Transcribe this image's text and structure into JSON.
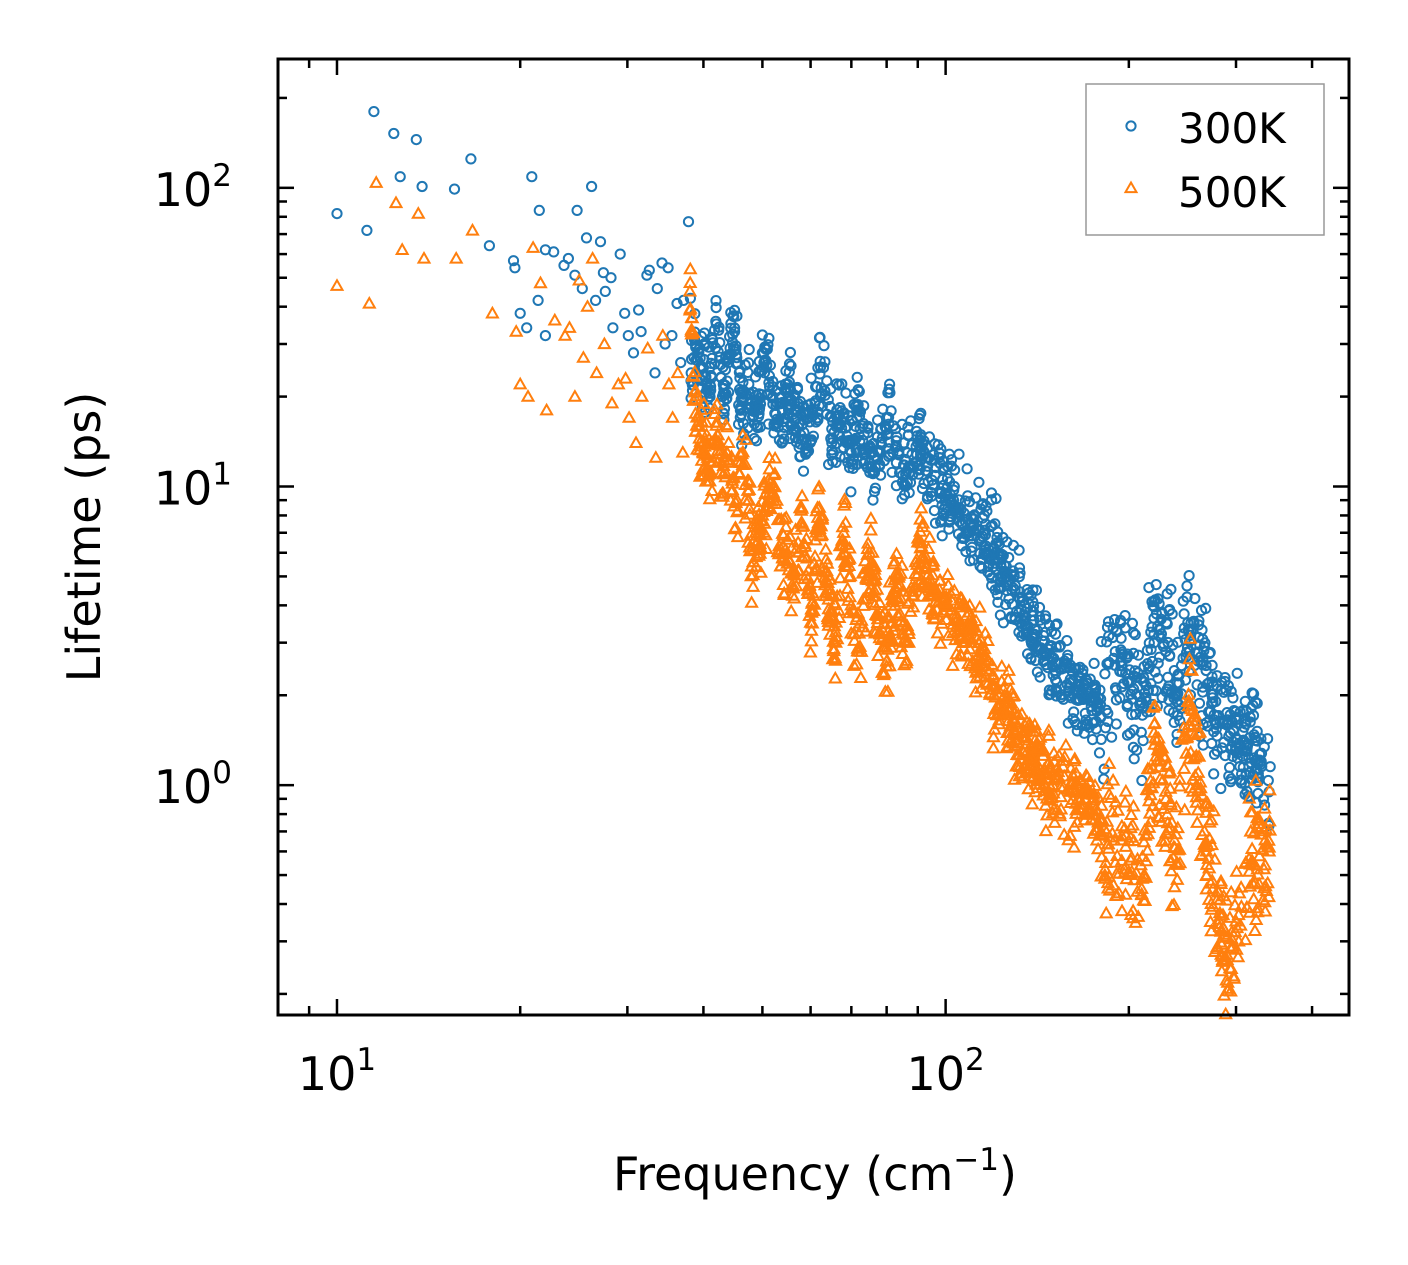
{
  "chart_data": {
    "type": "scatter",
    "title": "",
    "xlabel": "Frequency (cm",
    "xlabel_sup": "−1",
    "xlabel_tail": ")",
    "ylabel": "Lifetime (ps)",
    "xscale": "log",
    "yscale": "log",
    "xlim": [
      8.0,
      460
    ],
    "ylim": [
      0.17,
      270
    ],
    "legend_position": "top-right",
    "x_ticks": [
      {
        "value": 10,
        "base": "10",
        "exp": "1"
      },
      {
        "value": 100,
        "base": "10",
        "exp": "2"
      }
    ],
    "y_ticks": [
      {
        "value": 1,
        "base": "10",
        "exp": "0"
      },
      {
        "value": 10,
        "base": "10",
        "exp": "1"
      },
      {
        "value": 100,
        "base": "10",
        "exp": "2"
      }
    ],
    "series": [
      {
        "name": "300K",
        "marker": "circle",
        "color": "#1f77b4",
        "points": [
          [
            10.0,
            82
          ],
          [
            11.2,
            72
          ],
          [
            11.5,
            180
          ],
          [
            12.4,
            152
          ],
          [
            12.7,
            109
          ],
          [
            13.5,
            145
          ],
          [
            13.8,
            101
          ],
          [
            15.6,
            99
          ],
          [
            16.6,
            125
          ],
          [
            17.8,
            64
          ],
          [
            19.5,
            57
          ],
          [
            19.6,
            54
          ],
          [
            20.0,
            38
          ],
          [
            20.5,
            34
          ],
          [
            20.9,
            109
          ],
          [
            21.5,
            84
          ],
          [
            21.4,
            42
          ],
          [
            22.0,
            32
          ],
          [
            22.0,
            62
          ],
          [
            22.7,
            61
          ],
          [
            23.6,
            55
          ],
          [
            24.0,
            58
          ],
          [
            24.6,
            51
          ],
          [
            24.8,
            84
          ],
          [
            25.3,
            46
          ],
          [
            25.7,
            68
          ],
          [
            26.2,
            101
          ],
          [
            26.6,
            42
          ],
          [
            27.1,
            66
          ],
          [
            27.4,
            52
          ],
          [
            27.6,
            45
          ],
          [
            28.2,
            50
          ],
          [
            28.4,
            34
          ],
          [
            29.2,
            60
          ],
          [
            29.7,
            38
          ],
          [
            30.1,
            32
          ],
          [
            30.7,
            28
          ],
          [
            31.3,
            39
          ],
          [
            31.6,
            33
          ],
          [
            32.3,
            51
          ],
          [
            32.6,
            53
          ],
          [
            33.3,
            24
          ],
          [
            33.6,
            46
          ],
          [
            34.2,
            56
          ],
          [
            34.6,
            30
          ],
          [
            35.0,
            54
          ],
          [
            35.5,
            32
          ],
          [
            36.2,
            41
          ],
          [
            36.7,
            26
          ],
          [
            37.1,
            42
          ],
          [
            37.8,
            77
          ],
          [
            38.2,
            24
          ],
          [
            38.8,
            30
          ],
          [
            39.3,
            28
          ],
          [
            40.0,
            25
          ],
          [
            41.0,
            22
          ],
          [
            42.0,
            35
          ],
          [
            43.0,
            20
          ],
          [
            44.0,
            26
          ],
          [
            45.0,
            33
          ],
          [
            46.0,
            18
          ],
          [
            47.5,
            22
          ],
          [
            49.0,
            16
          ],
          [
            50.0,
            28
          ],
          [
            52.0,
            20
          ],
          [
            54.0,
            15
          ],
          [
            55.0,
            22
          ],
          [
            57.0,
            17
          ],
          [
            59.0,
            14
          ],
          [
            61.0,
            19
          ],
          [
            63.0,
            25
          ],
          [
            65.0,
            14
          ],
          [
            67.0,
            16
          ],
          [
            70.0,
            13
          ],
          [
            72.0,
            18
          ],
          [
            75.0,
            12
          ],
          [
            78.0,
            13
          ],
          [
            80.0,
            17
          ],
          [
            83.0,
            12
          ],
          [
            86.0,
            11
          ],
          [
            90.0,
            14
          ],
          [
            95.0,
            10.5
          ],
          [
            100.0,
            9.5
          ],
          [
            105.0,
            8.5
          ],
          [
            110.0,
            7.5
          ],
          [
            115.0,
            6.8
          ],
          [
            120.0,
            6.2
          ],
          [
            125.0,
            5.2
          ],
          [
            130.0,
            4.5
          ],
          [
            135.0,
            3.8
          ],
          [
            140.0,
            3.2
          ],
          [
            145.0,
            2.8
          ],
          [
            150.0,
            2.5
          ],
          [
            160.0,
            2.2
          ],
          [
            170.0,
            2.0
          ],
          [
            180.0,
            1.7
          ],
          [
            190.0,
            2.8
          ],
          [
            200.0,
            2.2
          ],
          [
            210.0,
            1.9
          ],
          [
            220.0,
            3.2
          ],
          [
            230.0,
            2.8
          ],
          [
            240.0,
            2.2
          ],
          [
            250.0,
            3.5
          ],
          [
            260.0,
            2.6
          ],
          [
            275.0,
            1.9
          ],
          [
            290.0,
            1.6
          ],
          [
            310.0,
            1.3
          ],
          [
            330.0,
            1.2
          ],
          [
            340.0,
            0.95
          ]
        ]
      },
      {
        "name": "500K",
        "marker": "triangle",
        "color": "#ff7f0e",
        "points": [
          [
            10.0,
            47
          ],
          [
            11.3,
            41
          ],
          [
            11.6,
            104
          ],
          [
            12.5,
            89
          ],
          [
            12.8,
            62
          ],
          [
            13.6,
            82
          ],
          [
            13.9,
            58
          ],
          [
            15.7,
            58
          ],
          [
            16.7,
            72
          ],
          [
            18.0,
            38
          ],
          [
            19.7,
            33
          ],
          [
            20.0,
            22
          ],
          [
            20.6,
            20
          ],
          [
            21.0,
            63
          ],
          [
            21.6,
            48
          ],
          [
            22.1,
            18
          ],
          [
            22.8,
            36
          ],
          [
            23.7,
            32
          ],
          [
            24.1,
            34
          ],
          [
            24.6,
            20
          ],
          [
            25.0,
            49
          ],
          [
            25.4,
            27
          ],
          [
            25.8,
            40
          ],
          [
            26.3,
            58
          ],
          [
            26.7,
            24
          ],
          [
            27.5,
            30
          ],
          [
            28.3,
            19
          ],
          [
            29.0,
            22
          ],
          [
            29.8,
            23
          ],
          [
            30.2,
            17
          ],
          [
            31.0,
            14
          ],
          [
            31.7,
            20
          ],
          [
            32.4,
            29
          ],
          [
            33.4,
            12.5
          ],
          [
            34.3,
            32
          ],
          [
            35.1,
            22
          ],
          [
            35.6,
            17
          ],
          [
            36.3,
            24
          ],
          [
            37.0,
            13
          ],
          [
            38.0,
            45
          ],
          [
            39.0,
            16
          ],
          [
            40.0,
            13
          ],
          [
            41.0,
            11
          ],
          [
            42.0,
            16
          ],
          [
            43.0,
            9.5
          ],
          [
            44.0,
            14
          ],
          [
            45.0,
            7.2
          ],
          [
            46.0,
            12
          ],
          [
            47.5,
            9
          ],
          [
            48.0,
            5.4
          ],
          [
            50.0,
            8
          ],
          [
            52.0,
            10
          ],
          [
            54.0,
            6
          ],
          [
            56.0,
            4.7
          ],
          [
            58.0,
            7.5
          ],
          [
            60.0,
            3.5
          ],
          [
            62.0,
            8.5
          ],
          [
            64.0,
            4.5
          ],
          [
            66.0,
            3
          ],
          [
            68.0,
            7
          ],
          [
            70.0,
            4
          ],
          [
            72.0,
            2.8
          ],
          [
            75.0,
            6
          ],
          [
            78.0,
            3.2
          ],
          [
            80.0,
            2.5
          ],
          [
            83.0,
            5
          ],
          [
            86.0,
            3
          ],
          [
            90.0,
            6.5
          ],
          [
            95.0,
            4.5
          ],
          [
            100.0,
            4
          ],
          [
            105.0,
            3.5
          ],
          [
            110.0,
            3
          ],
          [
            115.0,
            2.5
          ],
          [
            120.0,
            2
          ],
          [
            125.0,
            1.8
          ],
          [
            130.0,
            1.5
          ],
          [
            140.0,
            1.2
          ],
          [
            150.0,
            1.0
          ],
          [
            160.0,
            0.95
          ],
          [
            170.0,
            0.9
          ],
          [
            180.0,
            0.7
          ],
          [
            190.0,
            0.55
          ],
          [
            200.0,
            0.65
          ],
          [
            210.0,
            0.45
          ],
          [
            220.0,
            1.5
          ],
          [
            230.0,
            0.9
          ],
          [
            240.0,
            0.55
          ],
          [
            250.0,
            1.9
          ],
          [
            260.0,
            1.1
          ],
          [
            275.0,
            0.45
          ],
          [
            290.0,
            0.26
          ],
          [
            300.0,
            0.35
          ],
          [
            320.0,
            0.55
          ],
          [
            340.0,
            0.6
          ]
        ]
      }
    ]
  }
}
